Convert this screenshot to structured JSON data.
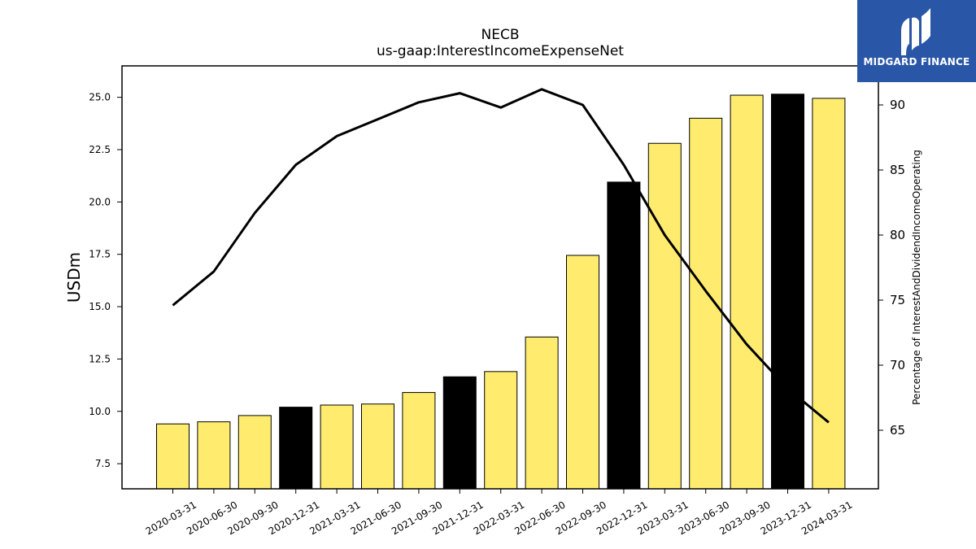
{
  "logo": {
    "text": "MIDGARD FINANCE",
    "color": "#2a56a8"
  },
  "chart_data": {
    "type": "bar",
    "title": "NECB",
    "subtitle": "us-gaap:InterestIncomeExpenseNet",
    "ylabel": "USDm",
    "y2label": "Percentage of InterestAndDividendIncomeOperating",
    "categories": [
      "2020-03-31",
      "2020-06-30",
      "2020-09-30",
      "2020-12-31",
      "2021-03-31",
      "2021-06-30",
      "2021-09-30",
      "2021-12-31",
      "2022-03-31",
      "2022-06-30",
      "2022-09-30",
      "2022-12-31",
      "2023-03-31",
      "2023-06-30",
      "2023-09-30",
      "2023-12-31",
      "2024-03-31"
    ],
    "values": [
      9.4,
      9.5,
      9.8,
      10.2,
      10.3,
      10.35,
      10.9,
      11.65,
      11.9,
      13.55,
      17.45,
      20.95,
      22.8,
      24.0,
      25.1,
      25.15,
      24.95
    ],
    "highlight": [
      false,
      false,
      false,
      true,
      false,
      false,
      false,
      true,
      false,
      false,
      false,
      true,
      false,
      false,
      false,
      true,
      false
    ],
    "bar_color": "#ffec6e",
    "highlight_color": "#000000",
    "line": {
      "values": [
        74.6,
        77.2,
        81.7,
        85.4,
        87.6,
        88.9,
        90.2,
        90.9,
        89.8,
        91.2,
        90.0,
        85.4,
        80.0,
        75.7,
        71.6,
        68.2,
        65.6
      ],
      "color": "#000000"
    },
    "ylim": [
      6.3,
      26.5
    ],
    "y2lim": [
      60.5,
      93.0
    ],
    "yticks": [
      7.5,
      10.0,
      12.5,
      15.0,
      17.5,
      20.0,
      22.5,
      25.0
    ],
    "y2ticks": [
      65,
      70,
      75,
      80,
      85,
      90
    ],
    "grid": false
  }
}
